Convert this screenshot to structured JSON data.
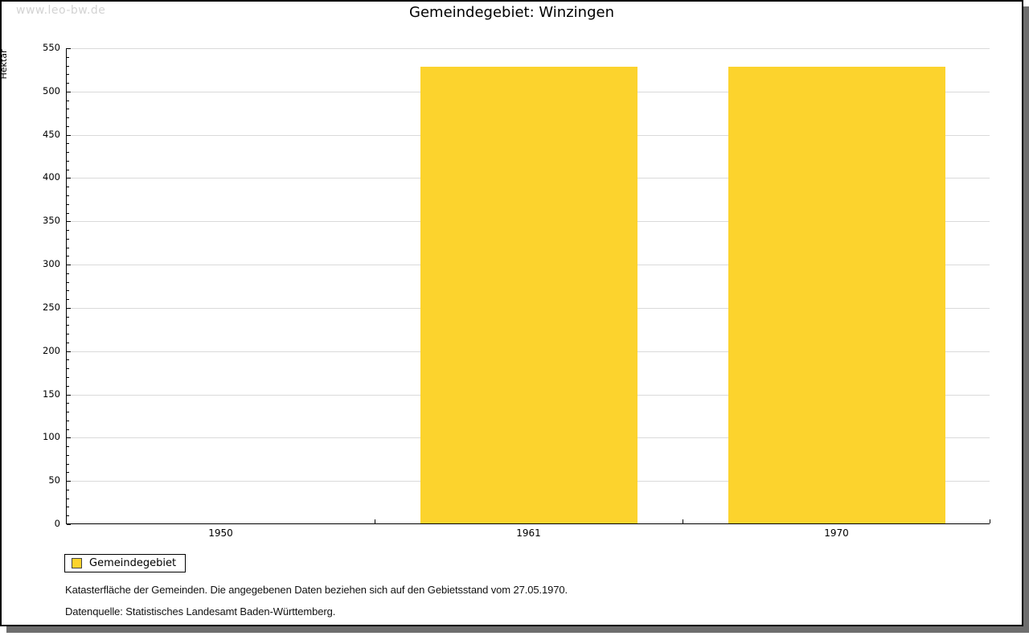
{
  "watermark": "www.leo-bw.de",
  "chart_data": {
    "type": "bar",
    "title": "Gemeindegebiet: Winzingen",
    "ylabel": "Hektar",
    "xlabel": "",
    "categories": [
      "1950",
      "1961",
      "1970"
    ],
    "series": [
      {
        "name": "Gemeindegebiet",
        "values": [
          null,
          528,
          528
        ]
      }
    ],
    "ylim": [
      0,
      550
    ],
    "y_major_step": 50,
    "y_minor_step": 10,
    "grid": true,
    "bar_color": "#FCD32D",
    "gridline_color": "#dadada",
    "legend_position": "bottom-left"
  },
  "legend": {
    "items": [
      {
        "label": "Gemeindegebiet",
        "color": "#FCD32D",
        "swatch_border": "#444444"
      }
    ]
  },
  "captions": {
    "line1": "Katasterfläche der Gemeinden. Die angegebenen Daten beziehen sich auf den Gebietsstand vom 27.05.1970.",
    "line2": "Datenquelle: Statistisches Landesamt Baden-Württemberg."
  }
}
